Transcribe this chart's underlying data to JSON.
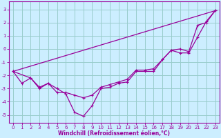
{
  "background_color": "#cceeff",
  "line_color": "#990099",
  "grid_color": "#99cccc",
  "xlabel": "Windchill (Refroidissement éolien,°C)",
  "xlim": [
    -0.5,
    23.5
  ],
  "ylim": [
    -5.6,
    3.6
  ],
  "yticks": [
    -5,
    -4,
    -3,
    -2,
    -1,
    0,
    1,
    2,
    3
  ],
  "xticks": [
    0,
    1,
    2,
    3,
    4,
    5,
    6,
    7,
    8,
    9,
    10,
    11,
    12,
    13,
    14,
    15,
    16,
    17,
    18,
    19,
    20,
    21,
    22,
    23
  ],
  "line1_x": [
    0,
    1,
    2,
    3,
    4,
    5,
    6,
    7,
    8,
    9,
    10,
    11,
    12,
    13,
    14,
    15,
    16,
    17,
    18,
    19,
    20,
    21,
    22,
    23
  ],
  "line1_y": [
    -1.7,
    -2.6,
    -2.2,
    -3.0,
    -2.6,
    -3.0,
    -3.4,
    -4.8,
    -5.1,
    -4.3,
    -3.0,
    -2.9,
    -2.6,
    -2.5,
    -1.7,
    -1.7,
    -1.7,
    -0.8,
    -0.1,
    -0.3,
    -0.3,
    0.9,
    2.1,
    2.9
  ],
  "line2_x": [
    0,
    2,
    3,
    4,
    5,
    6,
    7,
    8,
    9,
    10,
    11,
    12,
    13,
    14,
    15,
    16,
    17,
    18,
    19,
    20,
    21,
    22,
    23
  ],
  "line2_y": [
    -1.7,
    -2.2,
    -2.9,
    -2.6,
    -3.3,
    -3.3,
    -3.5,
    -3.7,
    -3.5,
    -2.9,
    -2.7,
    -2.5,
    -2.3,
    -1.6,
    -1.6,
    -1.5,
    -0.8,
    -0.1,
    0.0,
    -0.2,
    1.8,
    2.0,
    2.9
  ],
  "line3_x": [
    0,
    23
  ],
  "line3_y": [
    -1.7,
    2.9
  ]
}
